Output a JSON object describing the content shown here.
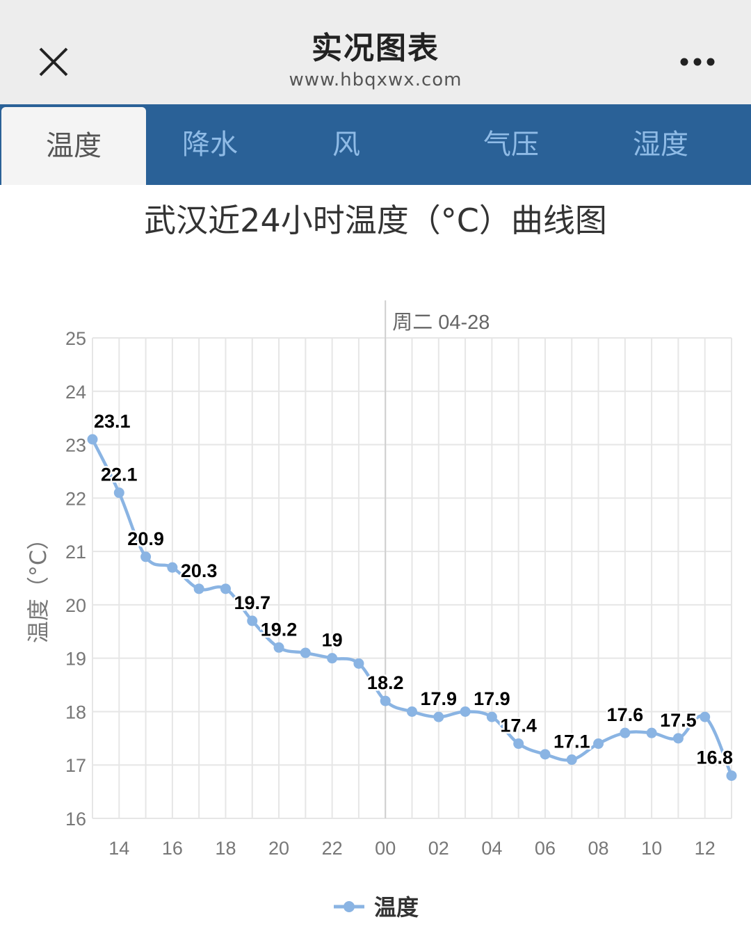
{
  "header": {
    "title": "实况图表",
    "subtitle": "www.hbqxwx.com",
    "close_icon": "close-icon",
    "more_icon": "more-dots-icon"
  },
  "tabs": [
    {
      "label": "温度",
      "active": true
    },
    {
      "label": "降水",
      "active": false
    },
    {
      "label": "风",
      "active": false
    },
    {
      "label": "气压",
      "active": false
    },
    {
      "label": "湿度",
      "active": false
    }
  ],
  "colors": {
    "tab_bar": "#2a6197",
    "tab_text": "#8fbbe6",
    "series": "#8ab4e3",
    "grid": "#e6e6e6"
  },
  "chart_data": {
    "type": "line",
    "title": "武汉近24小时温度（°C）曲线图",
    "ylabel": "温度（°C）",
    "ylim": [
      16,
      25
    ],
    "yticks": [
      "16",
      "17",
      "18",
      "19",
      "20",
      "21",
      "22",
      "23",
      "24",
      "25"
    ],
    "xticks": [
      "14",
      "16",
      "18",
      "20",
      "22",
      "00",
      "02",
      "04",
      "06",
      "08",
      "10",
      "12"
    ],
    "day_marker": "周二 04-28",
    "grid": true,
    "legend": "bottom-center",
    "series": [
      {
        "name": "温度",
        "x": [
          "13",
          "14",
          "15",
          "16",
          "17",
          "18",
          "19",
          "20",
          "21",
          "22",
          "23",
          "00",
          "01",
          "02",
          "03",
          "04",
          "05",
          "06",
          "07",
          "08",
          "09",
          "10",
          "11",
          "12",
          "13"
        ],
        "values": [
          23.1,
          22.1,
          20.9,
          20.7,
          20.3,
          20.3,
          19.7,
          19.2,
          19.1,
          19,
          18.9,
          18.2,
          18,
          17.9,
          18,
          17.9,
          17.4,
          17.2,
          17.1,
          17.4,
          17.6,
          17.6,
          17.5,
          17.9,
          16.8
        ],
        "labels": [
          "23.1",
          "22.1",
          "20.9",
          "",
          "20.3",
          "",
          "19.7",
          "19.2",
          "",
          "19",
          "",
          "18.2",
          "",
          "17.9",
          "",
          "17.9",
          "17.4",
          "",
          "17.1",
          "",
          "17.6",
          "",
          "17.5",
          "",
          "16.8"
        ]
      }
    ]
  }
}
